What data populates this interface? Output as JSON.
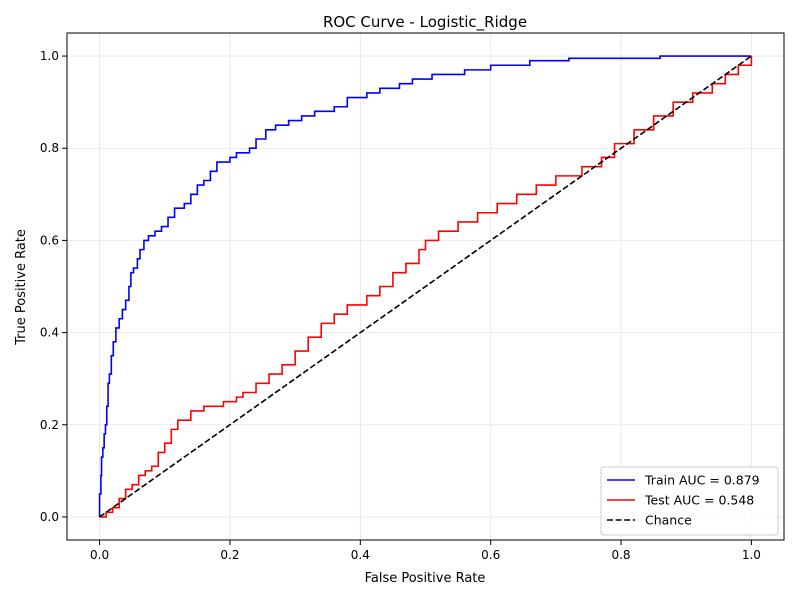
{
  "chart_data": {
    "type": "line",
    "title": "ROC Curve - Logistic_Ridge",
    "xlabel": "False Positive Rate",
    "ylabel": "True Positive Rate",
    "xlim": [
      -0.05,
      1.05
    ],
    "ylim": [
      -0.05,
      1.05
    ],
    "xticks": [
      0.0,
      0.2,
      0.4,
      0.6,
      0.8,
      1.0
    ],
    "yticks": [
      0.0,
      0.2,
      0.4,
      0.6,
      0.8,
      1.0
    ],
    "xtick_labels": [
      "0.0",
      "0.2",
      "0.4",
      "0.6",
      "0.8",
      "1.0"
    ],
    "ytick_labels": [
      "0.0",
      "0.2",
      "0.4",
      "0.6",
      "0.8",
      "1.0"
    ],
    "grid": true,
    "legend_position": "lower-right",
    "series": [
      {
        "name": "Train AUC = 0.879",
        "color": "#0000ff",
        "dash": "solid",
        "points": [
          [
            0.0,
            0.0
          ],
          [
            0.0,
            0.05
          ],
          [
            0.002,
            0.09
          ],
          [
            0.003,
            0.13
          ],
          [
            0.005,
            0.15
          ],
          [
            0.007,
            0.18
          ],
          [
            0.009,
            0.2
          ],
          [
            0.011,
            0.24
          ],
          [
            0.013,
            0.29
          ],
          [
            0.015,
            0.31
          ],
          [
            0.018,
            0.35
          ],
          [
            0.021,
            0.38
          ],
          [
            0.025,
            0.41
          ],
          [
            0.03,
            0.43
          ],
          [
            0.035,
            0.45
          ],
          [
            0.04,
            0.47
          ],
          [
            0.045,
            0.5
          ],
          [
            0.048,
            0.53
          ],
          [
            0.052,
            0.54
          ],
          [
            0.058,
            0.56
          ],
          [
            0.062,
            0.58
          ],
          [
            0.068,
            0.6
          ],
          [
            0.075,
            0.61
          ],
          [
            0.085,
            0.62
          ],
          [
            0.095,
            0.63
          ],
          [
            0.105,
            0.65
          ],
          [
            0.115,
            0.67
          ],
          [
            0.13,
            0.68
          ],
          [
            0.14,
            0.7
          ],
          [
            0.15,
            0.72
          ],
          [
            0.16,
            0.73
          ],
          [
            0.17,
            0.75
          ],
          [
            0.18,
            0.77
          ],
          [
            0.2,
            0.78
          ],
          [
            0.21,
            0.79
          ],
          [
            0.23,
            0.8
          ],
          [
            0.24,
            0.82
          ],
          [
            0.255,
            0.84
          ],
          [
            0.27,
            0.85
          ],
          [
            0.29,
            0.86
          ],
          [
            0.31,
            0.87
          ],
          [
            0.33,
            0.88
          ],
          [
            0.36,
            0.89
          ],
          [
            0.38,
            0.91
          ],
          [
            0.41,
            0.92
          ],
          [
            0.43,
            0.93
          ],
          [
            0.46,
            0.94
          ],
          [
            0.48,
            0.95
          ],
          [
            0.51,
            0.96
          ],
          [
            0.56,
            0.97
          ],
          [
            0.6,
            0.98
          ],
          [
            0.66,
            0.99
          ],
          [
            0.72,
            0.995
          ],
          [
            0.86,
            1.0
          ],
          [
            1.0,
            1.0
          ]
        ]
      },
      {
        "name": "Test AUC = 0.548",
        "color": "#ff0000",
        "dash": "solid",
        "points": [
          [
            0.0,
            0.0
          ],
          [
            0.01,
            0.01
          ],
          [
            0.02,
            0.02
          ],
          [
            0.03,
            0.04
          ],
          [
            0.04,
            0.06
          ],
          [
            0.05,
            0.07
          ],
          [
            0.06,
            0.09
          ],
          [
            0.07,
            0.1
          ],
          [
            0.08,
            0.11
          ],
          [
            0.09,
            0.14
          ],
          [
            0.1,
            0.16
          ],
          [
            0.11,
            0.19
          ],
          [
            0.12,
            0.21
          ],
          [
            0.14,
            0.23
          ],
          [
            0.16,
            0.24
          ],
          [
            0.19,
            0.25
          ],
          [
            0.21,
            0.26
          ],
          [
            0.22,
            0.27
          ],
          [
            0.24,
            0.29
          ],
          [
            0.26,
            0.31
          ],
          [
            0.28,
            0.33
          ],
          [
            0.3,
            0.36
          ],
          [
            0.32,
            0.39
          ],
          [
            0.34,
            0.42
          ],
          [
            0.36,
            0.44
          ],
          [
            0.38,
            0.46
          ],
          [
            0.41,
            0.48
          ],
          [
            0.43,
            0.5
          ],
          [
            0.45,
            0.53
          ],
          [
            0.47,
            0.55
          ],
          [
            0.49,
            0.58
          ],
          [
            0.5,
            0.6
          ],
          [
            0.52,
            0.62
          ],
          [
            0.55,
            0.64
          ],
          [
            0.58,
            0.66
          ],
          [
            0.61,
            0.68
          ],
          [
            0.64,
            0.7
          ],
          [
            0.67,
            0.72
          ],
          [
            0.7,
            0.74
          ],
          [
            0.74,
            0.76
          ],
          [
            0.77,
            0.78
          ],
          [
            0.79,
            0.81
          ],
          [
            0.82,
            0.84
          ],
          [
            0.85,
            0.87
          ],
          [
            0.88,
            0.9
          ],
          [
            0.91,
            0.92
          ],
          [
            0.94,
            0.94
          ],
          [
            0.96,
            0.96
          ],
          [
            0.98,
            0.98
          ],
          [
            1.0,
            1.0
          ]
        ]
      },
      {
        "name": "Chance",
        "color": "#000000",
        "dash": "dashed",
        "points": [
          [
            0.0,
            0.0
          ],
          [
            1.0,
            1.0
          ]
        ]
      }
    ]
  }
}
